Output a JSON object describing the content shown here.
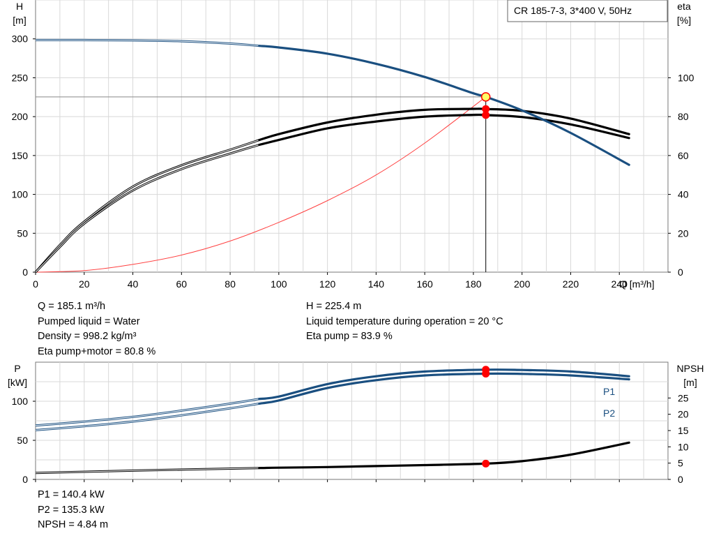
{
  "legend_title": "CR 185-7-3, 3*400 V, 50Hz",
  "info_left": [
    "Q = 185.1 m³/h",
    "Pumped liquid = Water",
    "Density = 998.2 kg/m³",
    "Eta pump+motor = 80.8 %"
  ],
  "info_right": [
    "H = 225.4 m",
    "Liquid temperature during operation = 20 °C",
    "Eta pump = 83.9 %"
  ],
  "info_bottom": [
    "P1 = 140.4 kW",
    "P2 = 135.3 kW",
    "NPSH = 4.84 m"
  ],
  "colors": {
    "head": "#1a4f80",
    "power": "#1a4f80",
    "efficiency": "#000000",
    "npsh": "#000000",
    "system": "#ff4040",
    "duty_point": "#ff0000",
    "grid": "#d8d8d8"
  },
  "chart_data": [
    {
      "type": "line",
      "xlabel": "Q [m³/h]",
      "ylabel_left": [
        "H",
        "[m]"
      ],
      "ylabel_right": [
        "eta",
        "[%]"
      ],
      "xlim": [
        0,
        260
      ],
      "ylim_left": [
        0,
        350
      ],
      "ylim_right": [
        0,
        140
      ],
      "x_ticks": [
        0,
        20,
        40,
        60,
        80,
        100,
        120,
        140,
        160,
        180,
        200,
        220,
        240
      ],
      "y_ticks_left": [
        0,
        50,
        100,
        150,
        200,
        250,
        300
      ],
      "y_ticks_right": [
        0,
        20,
        40,
        60,
        80,
        100
      ],
      "grid": true,
      "series": [
        {
          "key": "head",
          "axis": "left",
          "x": [
            0,
            20,
            40,
            60,
            80,
            92,
            100,
            120,
            140,
            160,
            180,
            185.1,
            200,
            220,
            244
          ],
          "y": [
            298.5,
            298.5,
            298,
            297,
            294,
            291,
            289,
            281,
            268,
            251,
            230,
            225.4,
            208,
            179,
            138
          ]
        },
        {
          "key": "eta_pump",
          "axis": "right",
          "x": [
            0,
            10,
            20,
            40,
            60,
            80,
            92,
            100,
            120,
            140,
            160,
            180,
            185.1,
            200,
            220,
            244
          ],
          "y": [
            0,
            14,
            26,
            44,
            55,
            63,
            68,
            71,
            77,
            81,
            83.5,
            84,
            83.9,
            83,
            79,
            71
          ]
        },
        {
          "key": "eta_total",
          "axis": "right",
          "x": [
            0,
            10,
            20,
            40,
            60,
            80,
            92,
            100,
            120,
            140,
            160,
            180,
            185.1,
            200,
            220,
            244
          ],
          "y": [
            0,
            13,
            25,
            42,
            53,
            61,
            65.5,
            68,
            74,
            77.5,
            80,
            80.9,
            80.8,
            79.8,
            76,
            69
          ]
        },
        {
          "key": "system",
          "axis": "left",
          "x": [
            0,
            20,
            40,
            60,
            80,
            100,
            120,
            140,
            160,
            185.1
          ],
          "y": [
            0,
            2,
            10,
            22,
            40,
            64,
            92,
            125,
            166,
            225.4
          ]
        }
      ],
      "duty_point": {
        "x": 185.1,
        "head": 225.4,
        "eta_pump": 83.9,
        "eta_total": 80.8
      }
    },
    {
      "type": "line",
      "ylabel_left": [
        "P",
        "[kW]"
      ],
      "ylabel_right": [
        "NPSH",
        "[m]"
      ],
      "xlim": [
        0,
        260
      ],
      "ylim_left": [
        0,
        150
      ],
      "ylim_right": [
        0,
        36
      ],
      "y_ticks_left": [
        0,
        50,
        100
      ],
      "y_ticks_right": [
        0,
        5,
        10,
        15,
        20,
        25
      ],
      "grid": true,
      "series": [
        {
          "key": "P1",
          "name": "P1",
          "axis": "left",
          "x": [
            0,
            20,
            40,
            60,
            80,
            92,
            100,
            120,
            140,
            160,
            185.1,
            200,
            220,
            244
          ],
          "y": [
            69,
            74,
            80,
            88,
            97,
            103,
            106,
            122,
            132,
            138,
            140.4,
            140,
            138,
            132
          ]
        },
        {
          "key": "P2",
          "name": "P2",
          "axis": "left",
          "x": [
            0,
            20,
            40,
            60,
            80,
            92,
            100,
            120,
            140,
            160,
            185.1,
            200,
            220,
            244
          ],
          "y": [
            63,
            68,
            74,
            82,
            91,
            97,
            101,
            117,
            127,
            133,
            135.3,
            135,
            133,
            128
          ]
        },
        {
          "key": "NPSH",
          "axis": "right",
          "x": [
            0,
            40,
            92,
            100,
            120,
            140,
            160,
            185.1,
            200,
            220,
            244
          ],
          "y": [
            2,
            2.7,
            3.5,
            3.6,
            3.8,
            4.1,
            4.4,
            4.84,
            5.6,
            7.6,
            11.3
          ]
        }
      ],
      "duty_point": {
        "x": 185.1,
        "P1": 140.4,
        "P2": 135.3,
        "NPSH": 4.84
      }
    }
  ]
}
